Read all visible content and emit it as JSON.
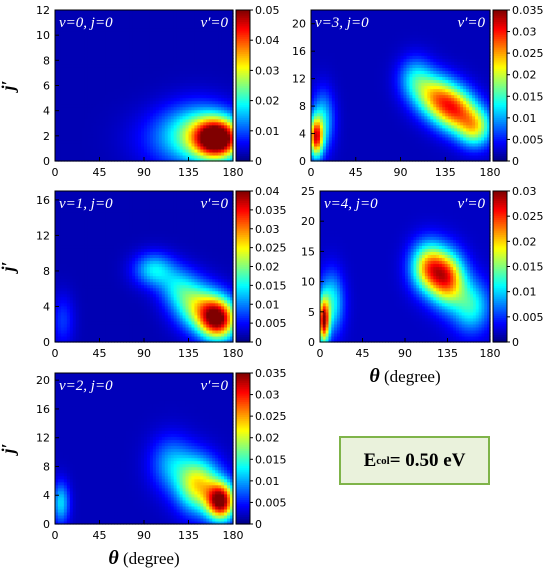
{
  "chart_data": [
    {
      "type": "heatmap",
      "panel_label": "v=0, j=0",
      "final_label": "v′=0",
      "ylabel": "j′",
      "xlabel": "",
      "xlim": [
        0,
        180
      ],
      "xticks": [
        0,
        45,
        90,
        135,
        180
      ],
      "ylim": [
        0,
        12
      ],
      "yticks": [
        0,
        2,
        4,
        6,
        8,
        10,
        12
      ],
      "clim": [
        0,
        0.05
      ],
      "cticks": [
        "0",
        "0.01",
        "0.02",
        "0.03",
        "0.04",
        "0.05"
      ],
      "blobs": [
        {
          "x": 165,
          "y": 1.8,
          "sx": 16,
          "sy": 1.1,
          "amp": 0.048
        },
        {
          "x": 145,
          "y": 2.2,
          "sx": 24,
          "sy": 1.6,
          "amp": 0.018
        },
        {
          "x": 120,
          "y": 1.8,
          "sx": 30,
          "sy": 1.6,
          "amp": 0.006
        }
      ],
      "background": 0.0025
    },
    {
      "type": "heatmap",
      "panel_label": "v=3, j=0",
      "final_label": "v′=0",
      "ylabel": "",
      "xlabel": "",
      "xlim": [
        0,
        180
      ],
      "xticks": [
        0,
        45,
        90,
        135,
        180
      ],
      "ylim": [
        0,
        22
      ],
      "yticks": [
        0,
        4,
        8,
        12,
        16,
        20
      ],
      "clim": [
        0,
        0.035
      ],
      "cticks": [
        "0",
        "0.005",
        "0.01",
        "0.015",
        "0.02",
        "0.025",
        "0.03",
        "0.035"
      ],
      "blobs": [
        {
          "x": 5,
          "y": 3.5,
          "sx": 5,
          "sy": 2.0,
          "amp": 0.026
        },
        {
          "x": 12,
          "y": 6,
          "sx": 8,
          "sy": 3.0,
          "amp": 0.01
        },
        {
          "x": 105,
          "y": 12,
          "sx": 12,
          "sy": 2.2,
          "amp": 0.01
        },
        {
          "x": 125,
          "y": 9.5,
          "sx": 14,
          "sy": 2.2,
          "amp": 0.018
        },
        {
          "x": 145,
          "y": 7.5,
          "sx": 14,
          "sy": 2.2,
          "amp": 0.022
        },
        {
          "x": 165,
          "y": 5.0,
          "sx": 12,
          "sy": 2.0,
          "amp": 0.018
        }
      ],
      "background": 0.002
    },
    {
      "type": "heatmap",
      "panel_label": "v=1, j=0",
      "final_label": "v′=0",
      "ylabel": "j′",
      "xlabel": "",
      "xlim": [
        0,
        180
      ],
      "xticks": [
        0,
        45,
        90,
        135,
        180
      ],
      "ylim": [
        0,
        17
      ],
      "yticks": [
        0,
        4,
        8,
        12,
        16
      ],
      "clim": [
        0,
        0.04
      ],
      "cticks": [
        "0",
        "0.005",
        "0.01",
        "0.015",
        "0.02",
        "0.025",
        "0.03",
        "0.035",
        "0.04"
      ],
      "blobs": [
        {
          "x": 165,
          "y": 2.6,
          "sx": 13,
          "sy": 1.6,
          "amp": 0.036
        },
        {
          "x": 145,
          "y": 4.0,
          "sx": 16,
          "sy": 1.8,
          "amp": 0.018
        },
        {
          "x": 100,
          "y": 8.2,
          "sx": 14,
          "sy": 1.3,
          "amp": 0.012
        },
        {
          "x": 125,
          "y": 6.2,
          "sx": 14,
          "sy": 1.6,
          "amp": 0.01
        },
        {
          "x": 8,
          "y": 2.5,
          "sx": 8,
          "sy": 2.0,
          "amp": 0.005
        }
      ],
      "background": 0.002
    },
    {
      "type": "heatmap",
      "panel_label": "v=4, j=0",
      "final_label": "v′=0",
      "ylabel": "",
      "xlabel": "θ (degree)",
      "xlim": [
        0,
        180
      ],
      "xticks": [
        0,
        45,
        90,
        135,
        180
      ],
      "ylim": [
        0,
        25
      ],
      "yticks": [
        0,
        5,
        10,
        15,
        20,
        25
      ],
      "clim": [
        0,
        0.03
      ],
      "cticks": [
        "0",
        "0.005",
        "0.01",
        "0.015",
        "0.02",
        "0.025",
        "0.03"
      ],
      "blobs": [
        {
          "x": 4,
          "y": 3.5,
          "sx": 4,
          "sy": 2.5,
          "amp": 0.024
        },
        {
          "x": 12,
          "y": 6.5,
          "sx": 9,
          "sy": 3.5,
          "amp": 0.01
        },
        {
          "x": 115,
          "y": 12.5,
          "sx": 13,
          "sy": 2.8,
          "amp": 0.018
        },
        {
          "x": 135,
          "y": 10.5,
          "sx": 13,
          "sy": 3.0,
          "amp": 0.02
        },
        {
          "x": 160,
          "y": 6.0,
          "sx": 14,
          "sy": 3.0,
          "amp": 0.01
        }
      ],
      "background": 0.002
    },
    {
      "type": "heatmap",
      "panel_label": "v=2, j=0",
      "final_label": "v′=0",
      "ylabel": "j′",
      "xlabel": "θ (degree)",
      "xlim": [
        0,
        180
      ],
      "xticks": [
        0,
        45,
        90,
        135,
        180
      ],
      "ylim": [
        0,
        21
      ],
      "yticks": [
        0,
        4,
        8,
        12,
        16,
        20
      ],
      "clim": [
        0,
        0.035
      ],
      "cticks": [
        "0",
        "0.005",
        "0.01",
        "0.015",
        "0.02",
        "0.025",
        "0.03",
        "0.035"
      ],
      "blobs": [
        {
          "x": 168,
          "y": 3.2,
          "sx": 10,
          "sy": 1.8,
          "amp": 0.032
        },
        {
          "x": 145,
          "y": 5.5,
          "sx": 15,
          "sy": 2.6,
          "amp": 0.02
        },
        {
          "x": 118,
          "y": 8.5,
          "sx": 15,
          "sy": 2.6,
          "amp": 0.008
        },
        {
          "x": 6,
          "y": 3.0,
          "sx": 6,
          "sy": 2.0,
          "amp": 0.01
        }
      ],
      "background": 0.002
    }
  ],
  "annotation": {
    "energy_symbol": "E",
    "energy_subscript": "col",
    "energy_value": " = 0.50 eV"
  }
}
